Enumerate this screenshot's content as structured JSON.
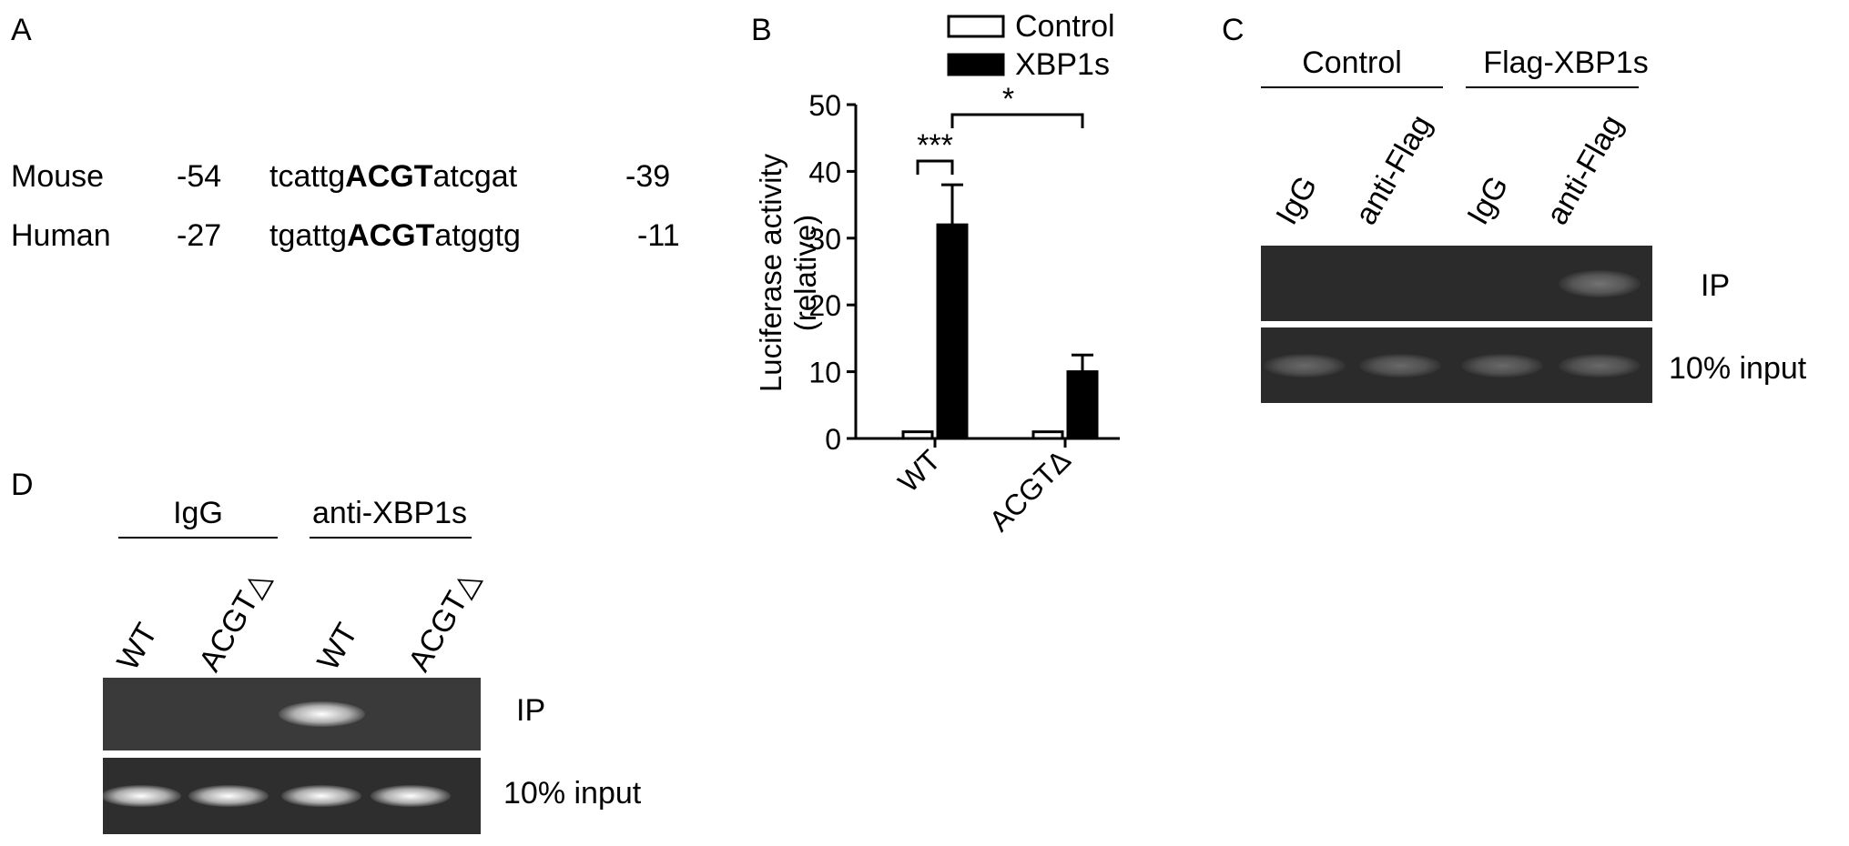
{
  "panels": {
    "a": {
      "label": "A",
      "rows": [
        {
          "species": "Mouse",
          "start": "-54",
          "pre": "tcattg",
          "motif": "ACGT",
          "post": "atcgat",
          "end": "-39"
        },
        {
          "species": "Human",
          "start": "-27",
          "pre": "tgattg",
          "motif": "ACGT",
          "post": "atggtg",
          "end": "-11"
        }
      ]
    },
    "b": {
      "label": "B"
    },
    "c": {
      "label": "C",
      "groups": [
        "Control",
        "Flag-XBP1s"
      ],
      "lanes": [
        "IgG",
        "anti-Flag",
        "IgG",
        "anti-Flag"
      ],
      "rows": [
        "IP",
        "10% input"
      ],
      "band_intensity": {
        "IP": [
          0,
          0,
          0,
          0.35
        ],
        "input": [
          0.3,
          0.3,
          0.3,
          0.3
        ]
      }
    },
    "d": {
      "label": "D",
      "groups": [
        "IgG",
        "anti-XBP1s"
      ],
      "lanes": [
        "WT",
        "ACGT△",
        "WT",
        "ACGT△"
      ],
      "rows": [
        "IP",
        "10% input"
      ],
      "band_intensity": {
        "IP": [
          0,
          0,
          1,
          0
        ],
        "input": [
          1,
          1,
          1,
          1
        ]
      }
    }
  },
  "chart_data": {
    "type": "bar",
    "categories": [
      "WT",
      "ACGTΔ"
    ],
    "series": [
      {
        "name": "Control",
        "values": [
          1,
          1
        ],
        "errors": [
          0,
          0
        ],
        "fill": "#ffffff"
      },
      {
        "name": "XBP1s",
        "values": [
          32,
          10
        ],
        "errors": [
          6,
          2.5
        ],
        "fill": "#000000"
      }
    ],
    "ylabel": "Luciferase activity",
    "ylabel2": "(relative)",
    "ylim": [
      0,
      50
    ],
    "yticks": [
      0,
      10,
      20,
      30,
      40,
      50
    ],
    "grid": false,
    "legend_position": "top",
    "significance": [
      {
        "text": "***",
        "between": "WT Control vs WT XBP1s"
      },
      {
        "text": "*",
        "between": "WT XBP1s vs ACGTΔ XBP1s"
      }
    ]
  }
}
